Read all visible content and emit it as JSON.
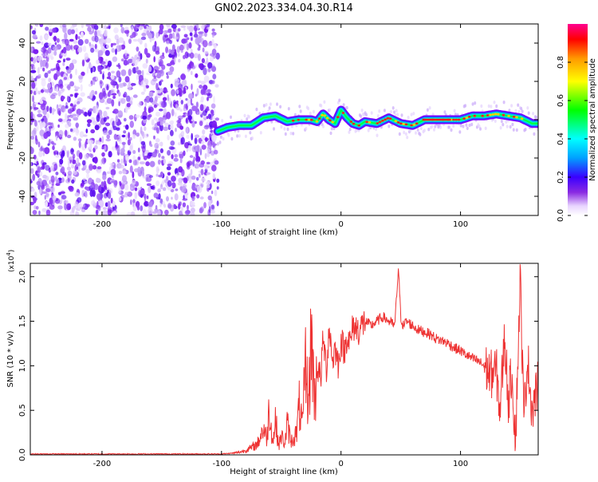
{
  "title": "GN02.2023.334.04.30.R14",
  "chart_data": [
    {
      "type": "heatmap",
      "xlabel": "Height of straight line (km)",
      "ylabel": "Frequency (Hz)",
      "xlim": [
        -260,
        165
      ],
      "ylim": [
        -50,
        50
      ],
      "x_ticks": [
        -200,
        -100,
        0,
        100
      ],
      "y_ticks": [
        -40,
        -20,
        0,
        20,
        40
      ],
      "noise_region": [
        -260,
        -103
      ],
      "ridge": {
        "x": [
          -103,
          -95,
          -85,
          -75,
          -65,
          -55,
          -45,
          -35,
          -25,
          -20,
          -15,
          -10,
          -5,
          0,
          5,
          10,
          15,
          20,
          30,
          40,
          50,
          60,
          70,
          80,
          90,
          100,
          110,
          120,
          130,
          140,
          150,
          160,
          165
        ],
        "frequency": [
          -6,
          -4,
          -3,
          -3,
          1,
          2,
          -1,
          0,
          0,
          -1,
          3,
          0,
          -2,
          5,
          1,
          -2,
          -3,
          -1,
          -2,
          1,
          -2,
          -3,
          0,
          0,
          0,
          0,
          2,
          2,
          3,
          2,
          1,
          -2,
          -2
        ]
      },
      "colorbar": {
        "label": "Normalized spectral amplitude",
        "ticks": [
          "0.0",
          "0.2",
          "0.4",
          "0.6",
          "0.8"
        ],
        "tick_values": [
          0.0,
          0.2,
          0.4,
          0.6,
          0.8
        ],
        "range": [
          0,
          1
        ],
        "colors": [
          "#ffffff",
          "#e8d4ff",
          "#8a2be2",
          "#3a00ff",
          "#00a0ff",
          "#00ffff",
          "#00ff00",
          "#ffff00",
          "#ff9900",
          "#ff0000",
          "#ff0090"
        ]
      }
    },
    {
      "type": "line",
      "xlabel": "Height of straight line (km)",
      "ylabel": "SNR (10 * v/v)",
      "scale_label": "(x10",
      "scale_exp": "4",
      "scale_close": ")",
      "xlim": [
        -260,
        165
      ],
      "ylim": [
        0,
        2.15
      ],
      "x_ticks": [
        -200,
        -100,
        0,
        100
      ],
      "y_ticks": [
        0,
        0.5,
        1.0,
        1.5,
        2.0
      ],
      "y_tick_labels": [
        "0.0",
        "0.5",
        "1.0",
        "1.5",
        "2.0"
      ],
      "color": "#ee3333",
      "series": [
        {
          "x": [
            -260,
            -200,
            -150,
            -100,
            -90,
            -85,
            -80,
            -75,
            -70,
            -65,
            -62,
            -60,
            -57,
            -55,
            -52,
            -50,
            -47,
            -45,
            -42,
            -40,
            -37,
            -35,
            -32,
            -30,
            -27,
            -25,
            -22,
            -20,
            -17,
            -15,
            -12,
            -10,
            -7,
            -5,
            -2,
            0,
            3,
            5,
            8,
            10,
            15,
            20,
            25,
            30,
            35,
            40,
            45,
            48,
            50,
            52,
            55,
            60,
            65,
            70,
            75,
            80,
            85,
            90,
            95,
            100,
            105,
            110,
            115,
            120,
            125,
            130,
            133,
            137,
            140,
            143,
            146,
            150,
            153,
            156,
            160,
            165
          ],
          "values": [
            0.01,
            0.01,
            0.01,
            0.01,
            0.02,
            0.03,
            0.05,
            0.08,
            0.12,
            0.3,
            0.18,
            0.55,
            0.12,
            0.4,
            0.1,
            0.22,
            0.12,
            0.35,
            0.15,
            0.18,
            0.25,
            0.55,
            0.3,
            1.05,
            0.55,
            1.4,
            0.6,
            1.0,
            0.85,
            1.3,
            0.95,
            1.45,
            1.05,
            1.2,
            1.0,
            1.3,
            1.15,
            1.35,
            1.25,
            1.45,
            1.4,
            1.5,
            1.45,
            1.5,
            1.55,
            1.5,
            1.45,
            2.1,
            1.55,
            1.45,
            1.5,
            1.45,
            1.4,
            1.38,
            1.35,
            1.3,
            1.28,
            1.25,
            1.2,
            1.17,
            1.12,
            1.08,
            1.05,
            1.0,
            0.9,
            0.95,
            0.5,
            1.35,
            0.6,
            0.95,
            0.15,
            2.0,
            0.4,
            1.1,
            0.5,
            0.8
          ]
        }
      ]
    }
  ]
}
